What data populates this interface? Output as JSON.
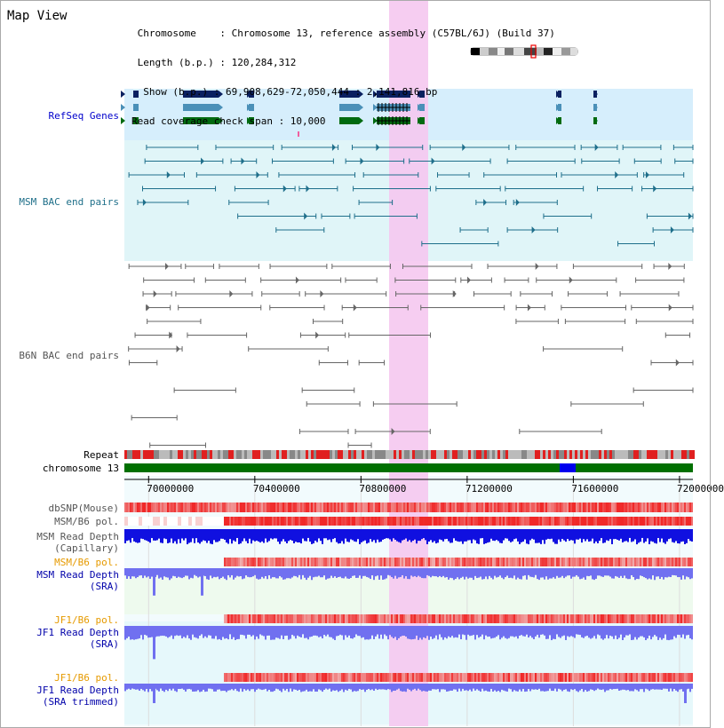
{
  "header": {
    "title": "Map View",
    "info_lines": [
      " Chromosome    : Chromosome 13, reference assembly (C57BL/6J) (Build 37)",
      " Length (b.p.) : 120,284,312",
      "  Show (b.p.) : 69,908,629-72,050,444 : 2,141,816 bp",
      "Read coverage check span : 10,000"
    ]
  },
  "tracks": {
    "refseq_label": "RefSeq Genes",
    "msm_bac_label": "MSM BAC end pairs",
    "b6n_bac_label": "B6N BAC end pairs",
    "repeat_label": "Repeat",
    "chromosome_label": "chromosome 13",
    "dbsnp_label": "dbSNP(Mouse)",
    "msm_b6_pol_label_1": "MSM/B6 pol.",
    "msm_read_depth_cap_1": "MSM Read Depth",
    "msm_read_depth_cap_2": "(Capillary)",
    "msm_b6_pol_label_2": "MSM/B6 pol.",
    "msm_read_depth_sra_1": "MSM Read Depth",
    "msm_read_depth_sra_2": "(SRA)",
    "jf1_b6_pol_label_1": "JF1/B6 pol.",
    "jf1_read_depth_sra_1": "JF1 Read Depth",
    "jf1_read_depth_sra_2": "(SRA)",
    "jf1_b6_pol_label_2": "JF1/B6 pol.",
    "jf1_read_depth_trim_1": "JF1 Read Depth",
    "jf1_read_depth_trim_2": "(SRA trimmed)"
  },
  "axis": {
    "ticks": [
      {
        "value": 70000000,
        "label": "70000000"
      },
      {
        "value": 70400000,
        "label": "70400000"
      },
      {
        "value": 70800000,
        "label": "70800000"
      },
      {
        "value": 71200000,
        "label": "71200000"
      },
      {
        "value": 71600000,
        "label": "71600000"
      },
      {
        "value": 72000000,
        "label": "72000000"
      }
    ],
    "start": 69908629,
    "end": 72050444
  },
  "colors": {
    "highlight": "#f5c8f0",
    "refseq_bg": "#d6eefc",
    "msm_bg": "#e0f5f8",
    "teal": "#1f6f8b",
    "gray_line": "#666666",
    "chrom_green": "#007000",
    "chrom_blue": "#0000ee",
    "snp_red": "#e83030",
    "depth_blue": "#1010e0",
    "depth_light": "#7070f0"
  }
}
